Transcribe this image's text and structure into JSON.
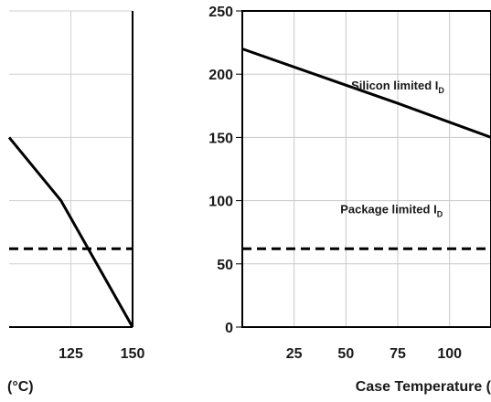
{
  "chart_data": [
    {
      "type": "line",
      "xlabel": "Case Temperature (",
      "ylabel": "",
      "x_ticks": [
        "25",
        "50",
        "75",
        "100"
      ],
      "y_ticks": [
        "250",
        "200",
        "150",
        "100",
        "50",
        "0"
      ],
      "xlim": [
        0,
        120
      ],
      "ylim": [
        0,
        250
      ],
      "grid": true,
      "series": [
        {
          "x": [
            0,
            75,
            120
          ],
          "y": [
            220,
            177,
            150
          ]
        },
        {
          "x": [
            0,
            120
          ],
          "y": [
            62,
            62
          ],
          "dashed": true
        }
      ],
      "annotations": [
        {
          "label_main": "Silicon limited I",
          "label_sub": "D",
          "x": 75,
          "y": 188
        },
        {
          "label_main": "Package limited I",
          "label_sub": "D",
          "x": 72,
          "y": 90
        }
      ]
    },
    {
      "type": "line",
      "xlabel": "(°C)",
      "ylabel": "",
      "x_ticks": [
        "125",
        "150"
      ],
      "xlim": [
        100,
        150
      ],
      "ylim": [
        0,
        250
      ],
      "series": [
        {
          "x": [
            100,
            121,
            150
          ],
          "y": [
            150,
            100,
            0
          ]
        },
        {
          "x": [
            100,
            150
          ],
          "y": [
            62,
            62
          ],
          "dashed": true
        }
      ]
    }
  ]
}
